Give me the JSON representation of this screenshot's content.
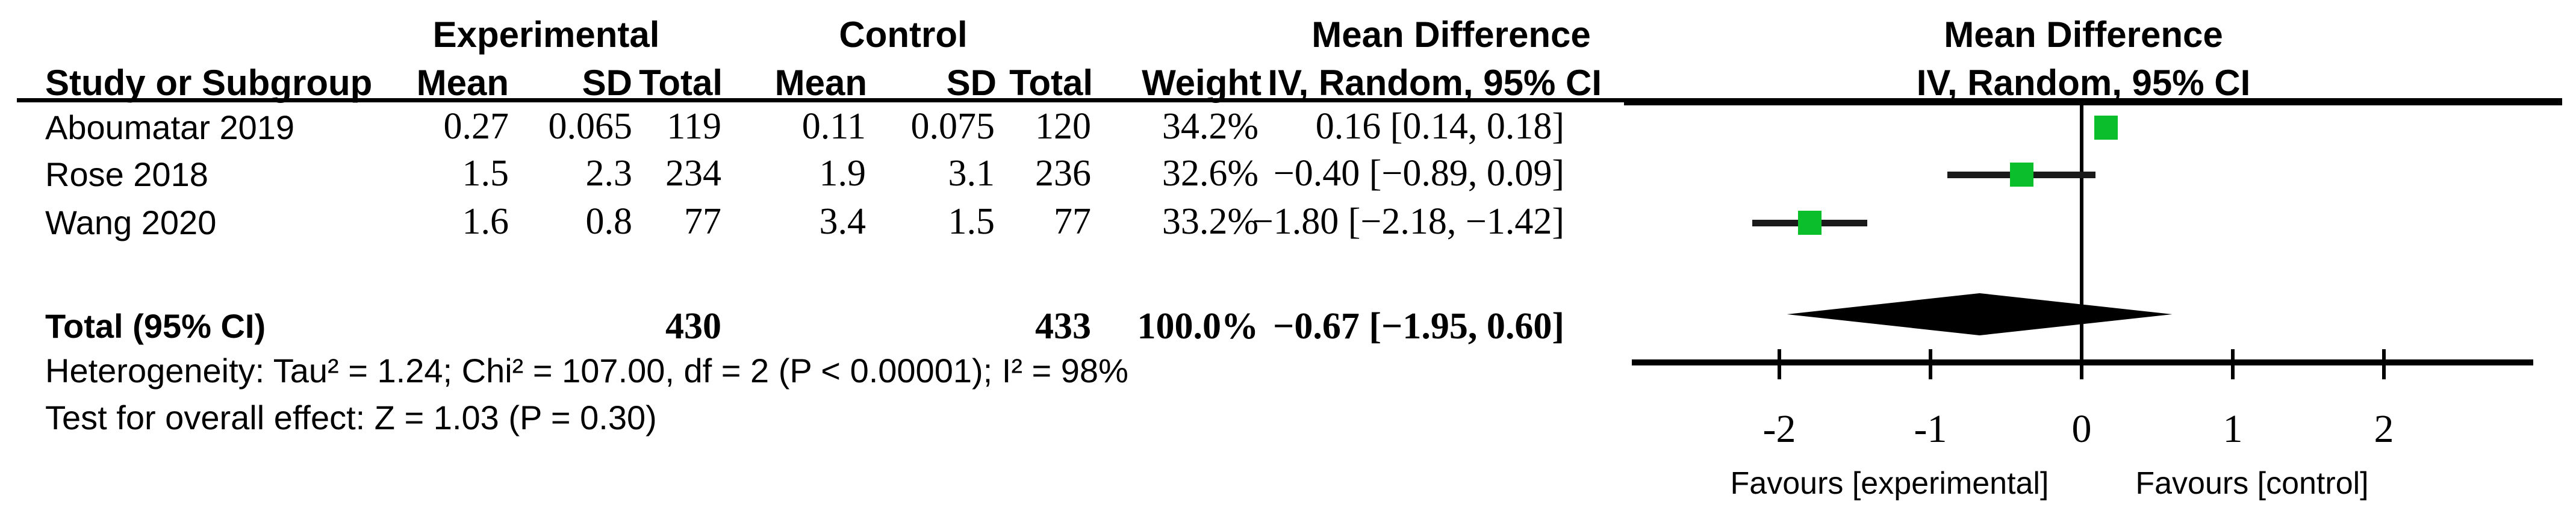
{
  "figure_title": "Forest plot — Mean Difference, IV, Random, 95% CI",
  "colors": {
    "marker_green": "#0ABE2C",
    "text_black": "#000000",
    "diamond_black": "#000000"
  },
  "table": {
    "group_headers": {
      "experimental": "Experimental",
      "control": "Control",
      "mean_difference": "Mean Difference"
    },
    "column_headers": {
      "study": "Study or Subgroup",
      "mean_e": "Mean",
      "sd_e": "SD",
      "total_e": "Total",
      "mean_c": "Mean",
      "sd_c": "SD",
      "total_c": "Total",
      "weight": "Weight",
      "ci": "IV, Random, 95% CI"
    },
    "rows": [
      {
        "study": "Aboumatar 2019",
        "mean_e": "0.27",
        "sd_e": "0.065",
        "total_e": "119",
        "mean_c": "0.11",
        "sd_c": "0.075",
        "total_c": "120",
        "weight": "34.2%",
        "ci": "0.16 [0.14, 0.18]"
      },
      {
        "study": "Rose 2018",
        "mean_e": "1.5",
        "sd_e": "2.3",
        "total_e": "234",
        "mean_c": "1.9",
        "sd_c": "3.1",
        "total_c": "236",
        "weight": "32.6%",
        "ci": "−0.40 [−0.89, 0.09]"
      },
      {
        "study": "Wang 2020",
        "mean_e": "1.6",
        "sd_e": "0.8",
        "total_e": "77",
        "mean_c": "3.4",
        "sd_c": "1.5",
        "total_c": "77",
        "weight": "33.2%",
        "ci": "−1.80 [−2.18, −1.42]"
      }
    ],
    "total_row": {
      "label": "Total (95% CI)",
      "total_e": "430",
      "total_c": "433",
      "weight": "100.0%",
      "ci": "−0.67 [−1.95, 0.60]"
    },
    "heterogeneity": "Heterogeneity: Tau² = 1.24; Chi² = 107.00, df = 2 (P < 0.00001); I² = 98%",
    "overall_effect": "Test for overall effect: Z = 1.03 (P = 0.30)"
  },
  "plot": {
    "header_line1": "Mean Difference",
    "header_line2": "IV, Random, 95% CI",
    "favours_left": "Favours [experimental]",
    "favours_right": "Favours [control]"
  },
  "chart_data": {
    "type": "scatter",
    "subtype": "forest-plot",
    "title": "Mean Difference, IV, Random, 95% CI",
    "xlim": [
      -3,
      3
    ],
    "x_ticks": [
      -2,
      -1,
      0,
      1,
      2
    ],
    "x_tick_labels": [
      "-2",
      "-1",
      "0",
      "1",
      "2"
    ],
    "grid": false,
    "points": [
      {
        "study": "Aboumatar 2019",
        "md": 0.16,
        "ci_low": 0.14,
        "ci_high": 0.18,
        "weight_pct": 34.2
      },
      {
        "study": "Rose 2018",
        "md": -0.4,
        "ci_low": -0.89,
        "ci_high": 0.09,
        "weight_pct": 32.6
      },
      {
        "study": "Wang 2020",
        "md": -1.8,
        "ci_low": -2.18,
        "ci_high": -1.42,
        "weight_pct": 33.2
      }
    ],
    "total": {
      "label": "Total (95% CI)",
      "md": -0.67,
      "ci_low": -1.95,
      "ci_high": 0.6,
      "weight_pct": 100.0
    },
    "xlabel_left": "Favours [experimental]",
    "xlabel_right": "Favours [control]",
    "marker_color": "#0ABE2C"
  }
}
